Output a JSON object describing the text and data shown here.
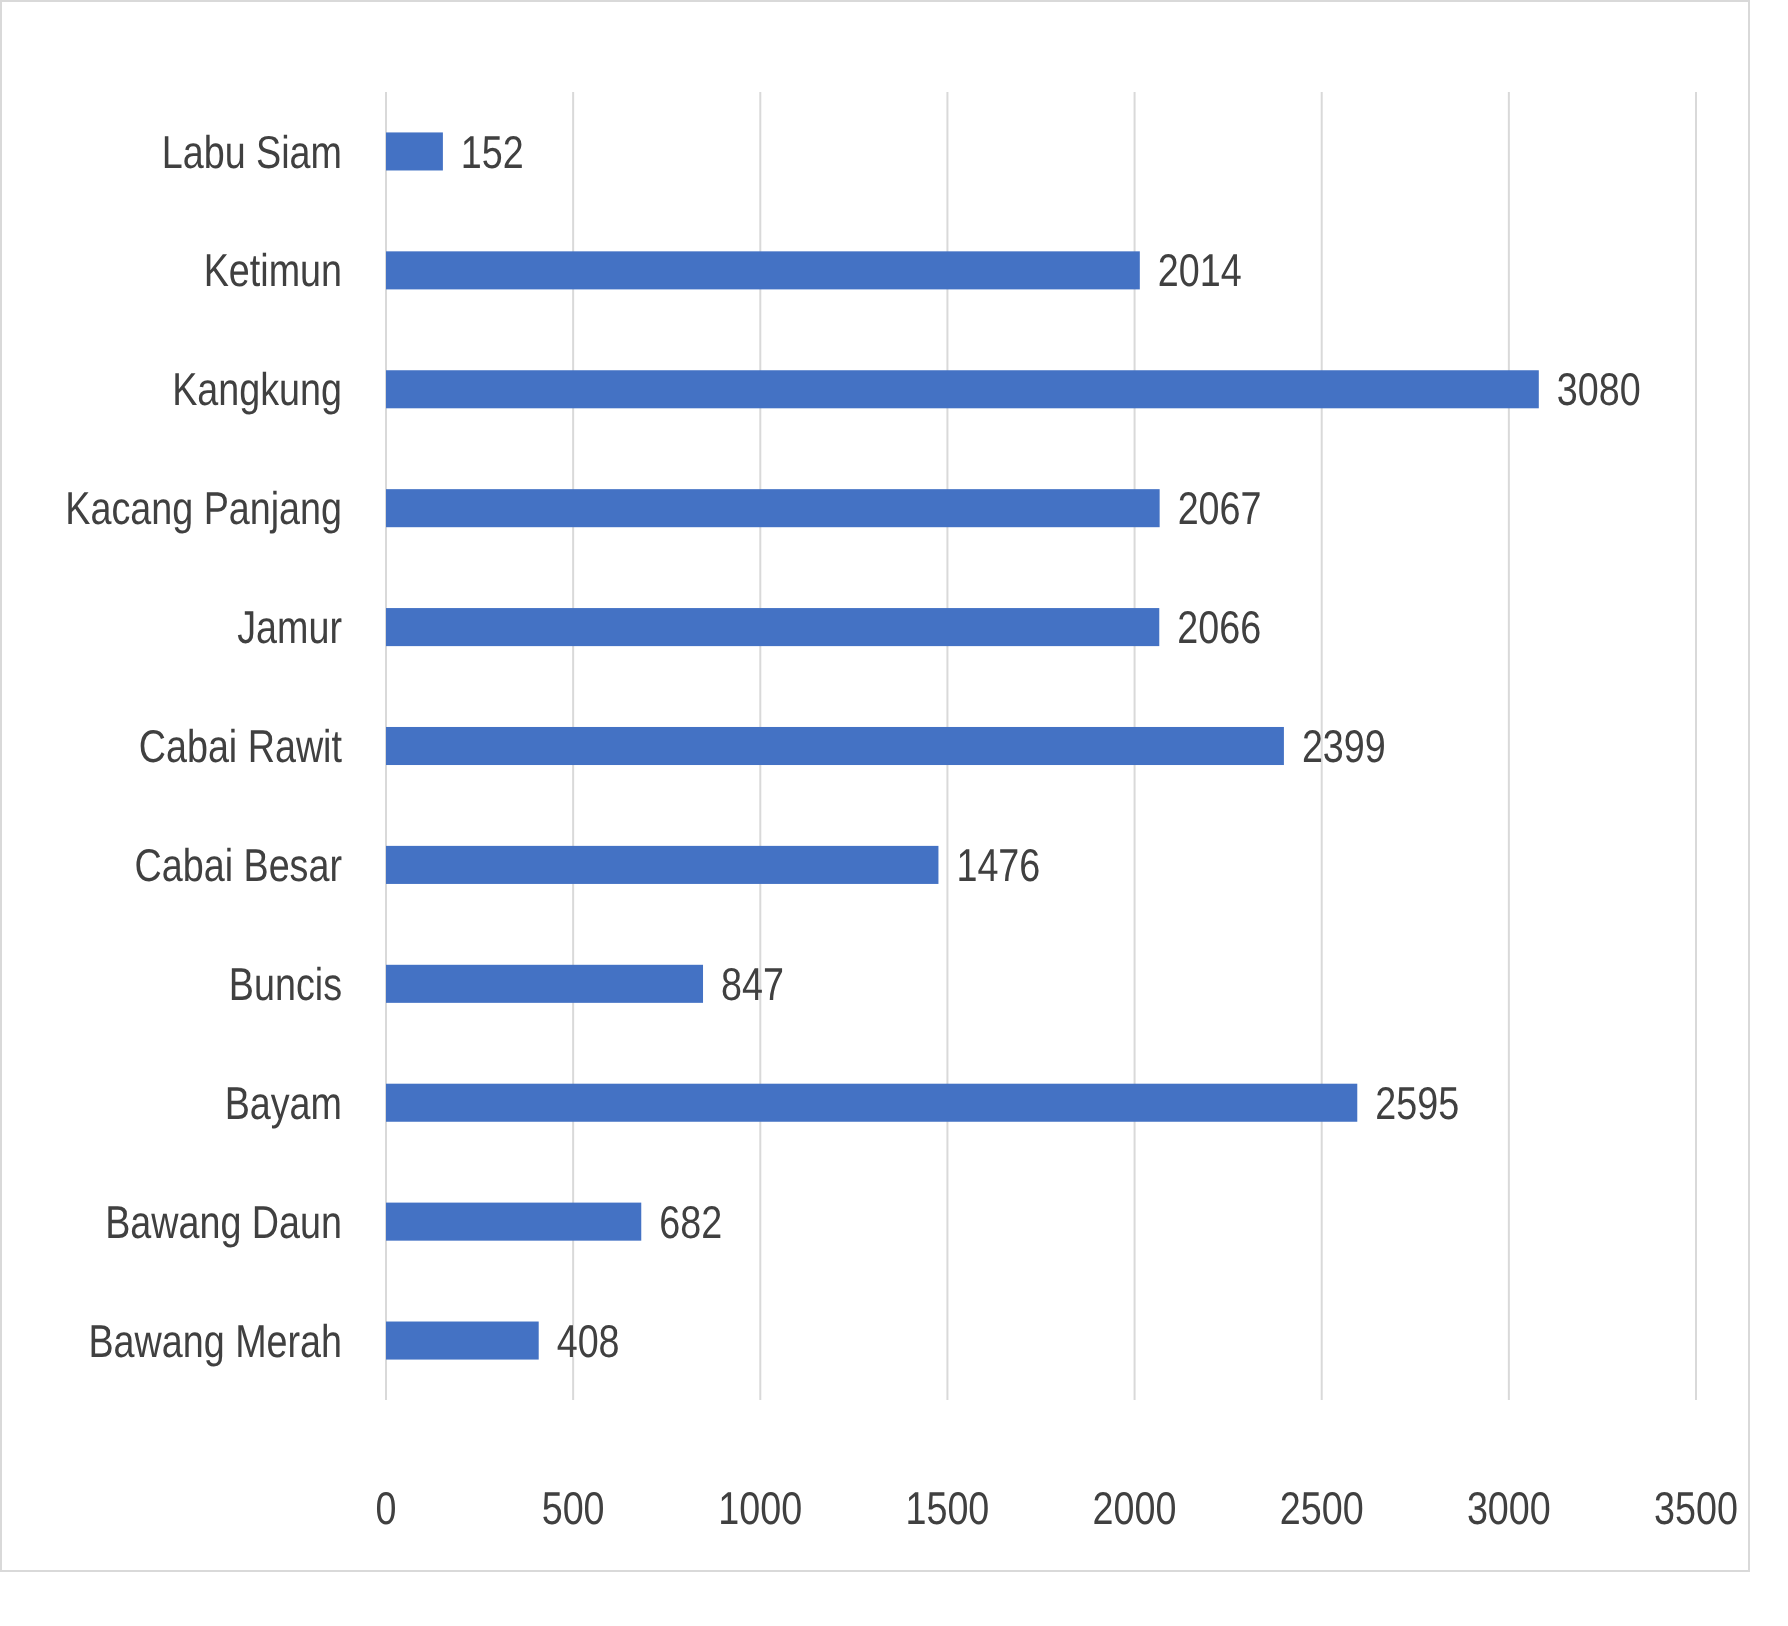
{
  "chart_data": {
    "type": "bar",
    "orientation": "horizontal",
    "categories": [
      "Labu Siam",
      "Ketimun",
      "Kangkung",
      "Kacang Panjang",
      "Jamur",
      "Cabai Rawit",
      "Cabai Besar",
      "Buncis",
      "Bayam",
      "Bawang Daun",
      "Bawang Merah"
    ],
    "values": [
      152,
      2014,
      3080,
      2067,
      2066,
      2399,
      1476,
      847,
      2595,
      682,
      408
    ],
    "color": "#4472c4",
    "xlim": [
      0,
      3500
    ],
    "xticks": [
      0,
      500,
      1000,
      1500,
      2000,
      2500,
      3000,
      3500
    ],
    "grid": "x",
    "data_labels": true
  }
}
